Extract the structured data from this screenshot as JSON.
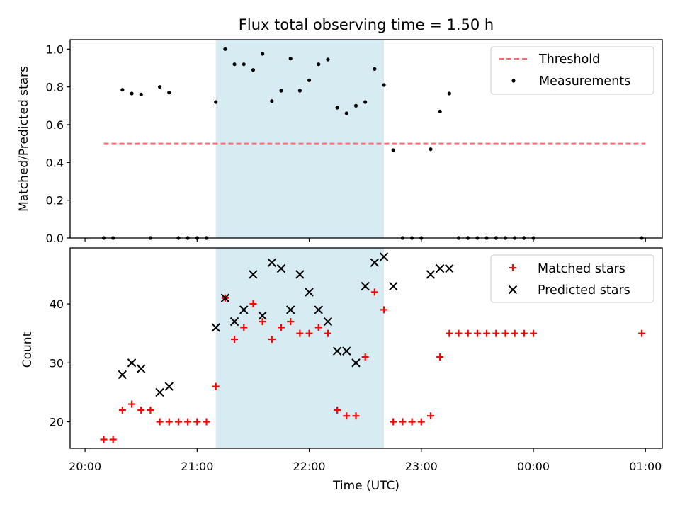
{
  "chart_data": [
    {
      "type": "scatter",
      "title": "Flux total observing time = 1.50 h",
      "ylabel": "Matched/Predicted stars",
      "xlabel": "",
      "ylim": [
        0,
        1.05
      ],
      "yticks": [
        "0.0",
        "0.2",
        "0.4",
        "0.6",
        "0.8",
        "1.0"
      ],
      "x_range": [
        "19:52",
        "01:09"
      ],
      "shaded_span": [
        "21:10",
        "22:40"
      ],
      "shade_color": "#add8e6",
      "legend_position": "top-right",
      "threshold": {
        "name": "Threshold",
        "value": 0.5,
        "x_range": [
          "20:10",
          "01:00"
        ],
        "color": "#ff6b6b",
        "style": "dashed"
      },
      "series": [
        {
          "name": "Measurements",
          "marker": "dot",
          "color": "#000000",
          "points": [
            [
              "20:10",
              0.0
            ],
            [
              "20:15",
              0.0
            ],
            [
              "20:20",
              0.785
            ],
            [
              "20:25",
              0.765
            ],
            [
              "20:30",
              0.76
            ],
            [
              "20:35",
              0.0
            ],
            [
              "20:40",
              0.8
            ],
            [
              "20:45",
              0.77
            ],
            [
              "20:50",
              0.0
            ],
            [
              "20:55",
              0.0
            ],
            [
              "21:00",
              0.0
            ],
            [
              "21:05",
              0.0
            ],
            [
              "21:10",
              0.72
            ],
            [
              "21:15",
              1.0
            ],
            [
              "21:20",
              0.92
            ],
            [
              "21:25",
              0.92
            ],
            [
              "21:30",
              0.89
            ],
            [
              "21:35",
              0.975
            ],
            [
              "21:40",
              0.725
            ],
            [
              "21:45",
              0.78
            ],
            [
              "21:50",
              0.95
            ],
            [
              "21:55",
              0.78
            ],
            [
              "22:00",
              0.835
            ],
            [
              "22:05",
              0.92
            ],
            [
              "22:10",
              0.945
            ],
            [
              "22:15",
              0.69
            ],
            [
              "22:20",
              0.66
            ],
            [
              "22:25",
              0.7
            ],
            [
              "22:30",
              0.72
            ],
            [
              "22:35",
              0.895
            ],
            [
              "22:40",
              0.81
            ],
            [
              "22:45",
              0.465
            ],
            [
              "22:50",
              0.0
            ],
            [
              "22:55",
              0.0
            ],
            [
              "23:00",
              0.0
            ],
            [
              "23:05",
              0.47
            ],
            [
              "23:10",
              0.67
            ],
            [
              "23:15",
              0.765
            ],
            [
              "23:20",
              0.0
            ],
            [
              "23:25",
              0.0
            ],
            [
              "23:30",
              0.0
            ],
            [
              "23:35",
              0.0
            ],
            [
              "23:40",
              0.0
            ],
            [
              "23:45",
              0.0
            ],
            [
              "23:50",
              0.0
            ],
            [
              "23:55",
              0.0
            ],
            [
              "00:00",
              0.0
            ],
            [
              "00:58",
              0.0
            ]
          ]
        }
      ]
    },
    {
      "type": "scatter",
      "xlabel": "Time (UTC)",
      "ylabel": "Count",
      "ylim": [
        15.5,
        49.5
      ],
      "yticks": [
        "20",
        "30",
        "40"
      ],
      "x_range": [
        "19:52",
        "01:09"
      ],
      "xticks": [
        "20:00",
        "21:00",
        "22:00",
        "23:00",
        "00:00",
        "01:00"
      ],
      "shaded_span": [
        "21:10",
        "22:40"
      ],
      "shade_color": "#add8e6",
      "legend_position": "top-right",
      "series": [
        {
          "name": "Matched stars",
          "marker": "plus",
          "color": "#ff0000",
          "points": [
            [
              "20:10",
              17
            ],
            [
              "20:15",
              17
            ],
            [
              "20:20",
              22
            ],
            [
              "20:25",
              23
            ],
            [
              "20:30",
              22
            ],
            [
              "20:35",
              22
            ],
            [
              "20:40",
              20
            ],
            [
              "20:45",
              20
            ],
            [
              "20:50",
              20
            ],
            [
              "20:55",
              20
            ],
            [
              "21:00",
              20
            ],
            [
              "21:05",
              20
            ],
            [
              "21:10",
              26
            ],
            [
              "21:15",
              41
            ],
            [
              "21:20",
              34
            ],
            [
              "21:25",
              36
            ],
            [
              "21:30",
              40
            ],
            [
              "21:35",
              37
            ],
            [
              "21:40",
              34
            ],
            [
              "21:45",
              36
            ],
            [
              "21:50",
              37
            ],
            [
              "21:55",
              35
            ],
            [
              "22:00",
              35
            ],
            [
              "22:05",
              36
            ],
            [
              "22:10",
              35
            ],
            [
              "22:15",
              22
            ],
            [
              "22:20",
              21
            ],
            [
              "22:25",
              21
            ],
            [
              "22:30",
              31
            ],
            [
              "22:35",
              42
            ],
            [
              "22:40",
              39
            ],
            [
              "22:45",
              20
            ],
            [
              "22:50",
              20
            ],
            [
              "22:55",
              20
            ],
            [
              "23:00",
              20
            ],
            [
              "23:05",
              21
            ],
            [
              "23:10",
              31
            ],
            [
              "23:15",
              35
            ],
            [
              "23:20",
              35
            ],
            [
              "23:25",
              35
            ],
            [
              "23:30",
              35
            ],
            [
              "23:35",
              35
            ],
            [
              "23:40",
              35
            ],
            [
              "23:45",
              35
            ],
            [
              "23:50",
              35
            ],
            [
              "23:55",
              35
            ],
            [
              "00:00",
              35
            ],
            [
              "00:58",
              35
            ]
          ]
        },
        {
          "name": "Predicted stars",
          "marker": "x",
          "color": "#000000",
          "points": [
            [
              "20:20",
              28
            ],
            [
              "20:25",
              30
            ],
            [
              "20:30",
              29
            ],
            [
              "20:40",
              25
            ],
            [
              "20:45",
              26
            ],
            [
              "21:10",
              36
            ],
            [
              "21:15",
              41
            ],
            [
              "21:20",
              37
            ],
            [
              "21:25",
              39
            ],
            [
              "21:30",
              45
            ],
            [
              "21:35",
              38
            ],
            [
              "21:40",
              47
            ],
            [
              "21:45",
              46
            ],
            [
              "21:50",
              39
            ],
            [
              "21:55",
              45
            ],
            [
              "22:00",
              42
            ],
            [
              "22:05",
              39
            ],
            [
              "22:10",
              37
            ],
            [
              "22:15",
              32
            ],
            [
              "22:20",
              32
            ],
            [
              "22:25",
              30
            ],
            [
              "22:30",
              43
            ],
            [
              "22:35",
              47
            ],
            [
              "22:40",
              48
            ],
            [
              "22:45",
              43
            ],
            [
              "23:05",
              45
            ],
            [
              "23:10",
              46
            ],
            [
              "23:15",
              46
            ]
          ]
        }
      ]
    }
  ]
}
